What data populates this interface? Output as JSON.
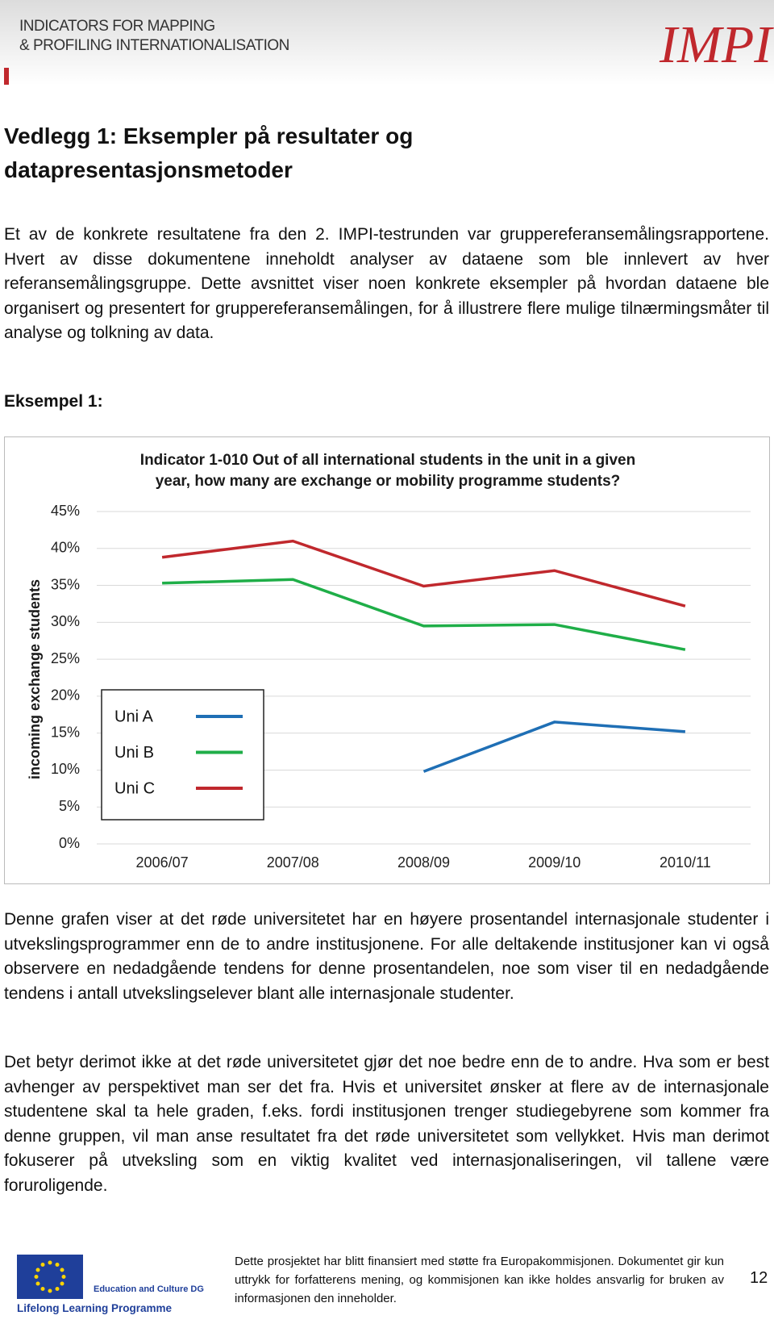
{
  "header": {
    "brand_line1": "INDICATORS FOR MAPPING",
    "brand_line2": "& PROFILING INTERNATIONALISATION",
    "logo": "IMPI"
  },
  "heading": "Vedlegg 1: Eksempler på resultater og datapresentasjonsmetoder",
  "paragraphs": [
    "Et av de konkrete resultatene fra den 2. IMPI-testrunden var gruppereferansemålingsrapportene. Hvert av disse dokumentene inneholdt analyser av dataene som ble innlevert av hver referansemålingsgruppe. Dette avsnittet viser noen konkrete eksempler på hvordan dataene ble organisert og presentert for gruppereferansemålingen, for å illustrere flere mulige tilnærmingsmåter til analyse og tolkning av data."
  ],
  "example_label": "Eksempel 1:",
  "chart_data": {
    "type": "line",
    "title_lines": [
      "Indicator 1-010 Out of all international  students in the unit in a given",
      "year, how many are exchange or mobility  programme students?"
    ],
    "y_label": "incoming exchange students",
    "categories": [
      "2006/07",
      "2007/08",
      "2008/09",
      "2009/10",
      "2010/11"
    ],
    "series": [
      {
        "name": "Uni A",
        "color": "#1f6fb5",
        "values": [
          null,
          null,
          9.8,
          16.5,
          15.2
        ]
      },
      {
        "name": "Uni B",
        "color": "#1fae48",
        "values": [
          35.3,
          35.8,
          29.5,
          29.7,
          26.3
        ]
      },
      {
        "name": "Uni C",
        "color": "#c0282d",
        "values": [
          38.8,
          41.0,
          34.9,
          37.0,
          32.2
        ]
      }
    ],
    "ylim": [
      0,
      45
    ],
    "yticks": [
      {
        "value": 0,
        "label": "0%"
      },
      {
        "value": 5,
        "label": "5%"
      },
      {
        "value": 10,
        "label": "10%"
      },
      {
        "value": 15,
        "label": "15%"
      },
      {
        "value": 20,
        "label": "20%"
      },
      {
        "value": 25,
        "label": "25%"
      },
      {
        "value": 30,
        "label": "30%"
      },
      {
        "value": 35,
        "label": "35%"
      },
      {
        "value": 40,
        "label": "40%"
      },
      {
        "value": 45,
        "label": "45%"
      }
    ],
    "grid": true,
    "legend": "left"
  },
  "paragraphs_after": [
    "Denne grafen viser at det røde universitetet har en høyere prosentandel internasjonale studenter i utvekslingsprogrammer enn de to andre institusjonene. For alle deltakende institusjoner kan vi også observere en nedadgående tendens for denne prosentandelen, noe som viser til en nedadgående tendens i antall utvekslingselever blant alle internasjonale studenter.",
    "Det betyr derimot ikke at det røde universitetet gjør det noe bedre enn de to andre. Hva som er best avhenger av perspektivet man ser det fra. Hvis et universitet ønsker at flere av de internasjonale studentene skal ta hele graden, f.eks. fordi institusjonen trenger studiegebyrene som kommer fra denne gruppen, vil man anse resultatet fra det røde universitetet som vellykket. Hvis man derimot fokuserer på utveksling som en viktig kvalitet ved internasjonaliseringen, vil tallene være foruroligende."
  ],
  "footer": {
    "logo_line1": "Education and Culture DG",
    "logo_line2": "Lifelong Learning Programme",
    "text": "Dette prosjektet har blitt finansiert med støtte fra Europakommisjonen. Dokumentet gir kun uttrykk for forfatterens mening, og kommisjonen kan ikke holdes ansvarlig for bruken av informasjonen den inneholder.",
    "page_number": 12
  }
}
